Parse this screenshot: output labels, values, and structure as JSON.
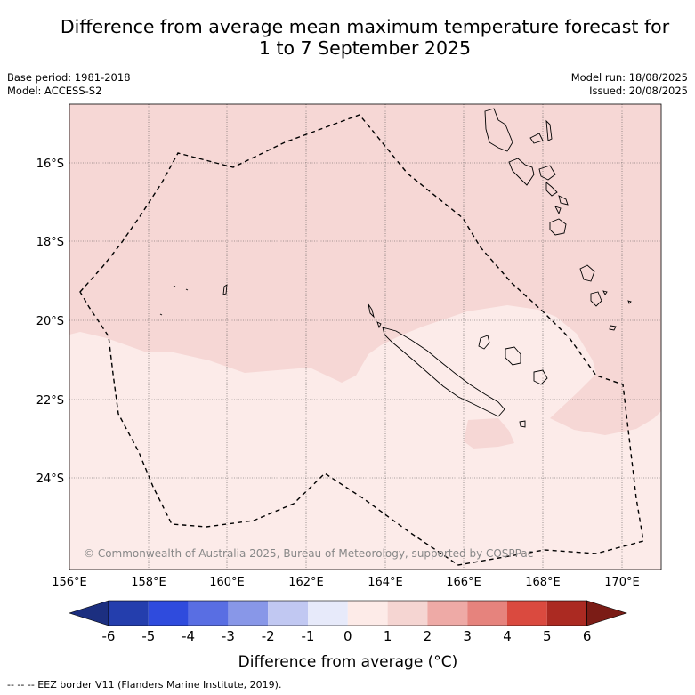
{
  "title": {
    "line1": "Difference from average mean maximum temperature forecast for",
    "line2": "1 to 7 September 2025"
  },
  "meta": {
    "base_period": "Base period: 1981-2018",
    "model": "Model: ACCESS-S2",
    "model_run": "Model run: 18/08/2025",
    "issued": "Issued: 20/08/2025"
  },
  "map": {
    "lat_labels": [
      "16°S",
      "18°S",
      "20°S",
      "22°S",
      "24°S"
    ],
    "lon_labels": [
      "156°E",
      "158°E",
      "160°E",
      "162°E",
      "164°E",
      "166°E",
      "168°E",
      "170°E"
    ],
    "copyright": "© Commonwealth of Australia 2025, Bureau of Meteorology, supported by COSPPac",
    "category_colors": {
      "0 to 1": "#fcebe9",
      "1 to 2": "#f6d7d5"
    }
  },
  "colorbar": {
    "labels": [
      "-6",
      "-5",
      "-4",
      "-3",
      "-2",
      "-1",
      "0",
      "1",
      "2",
      "3",
      "4",
      "5",
      "6"
    ],
    "colors": [
      "#1c2f80",
      "#243ead",
      "#2f4bdd",
      "#596ee3",
      "#8897e8",
      "#c1c8f2",
      "#e7eafa",
      "#fdebe8",
      "#f5d5d2",
      "#eeaaa6",
      "#e6837d",
      "#da4a3f",
      "#ab2a22",
      "#7b1c16"
    ],
    "label": "Difference from average (°C)"
  },
  "footnote": "-- -- -- EEZ border V11 (Flanders Marine Institute, 2019)."
}
